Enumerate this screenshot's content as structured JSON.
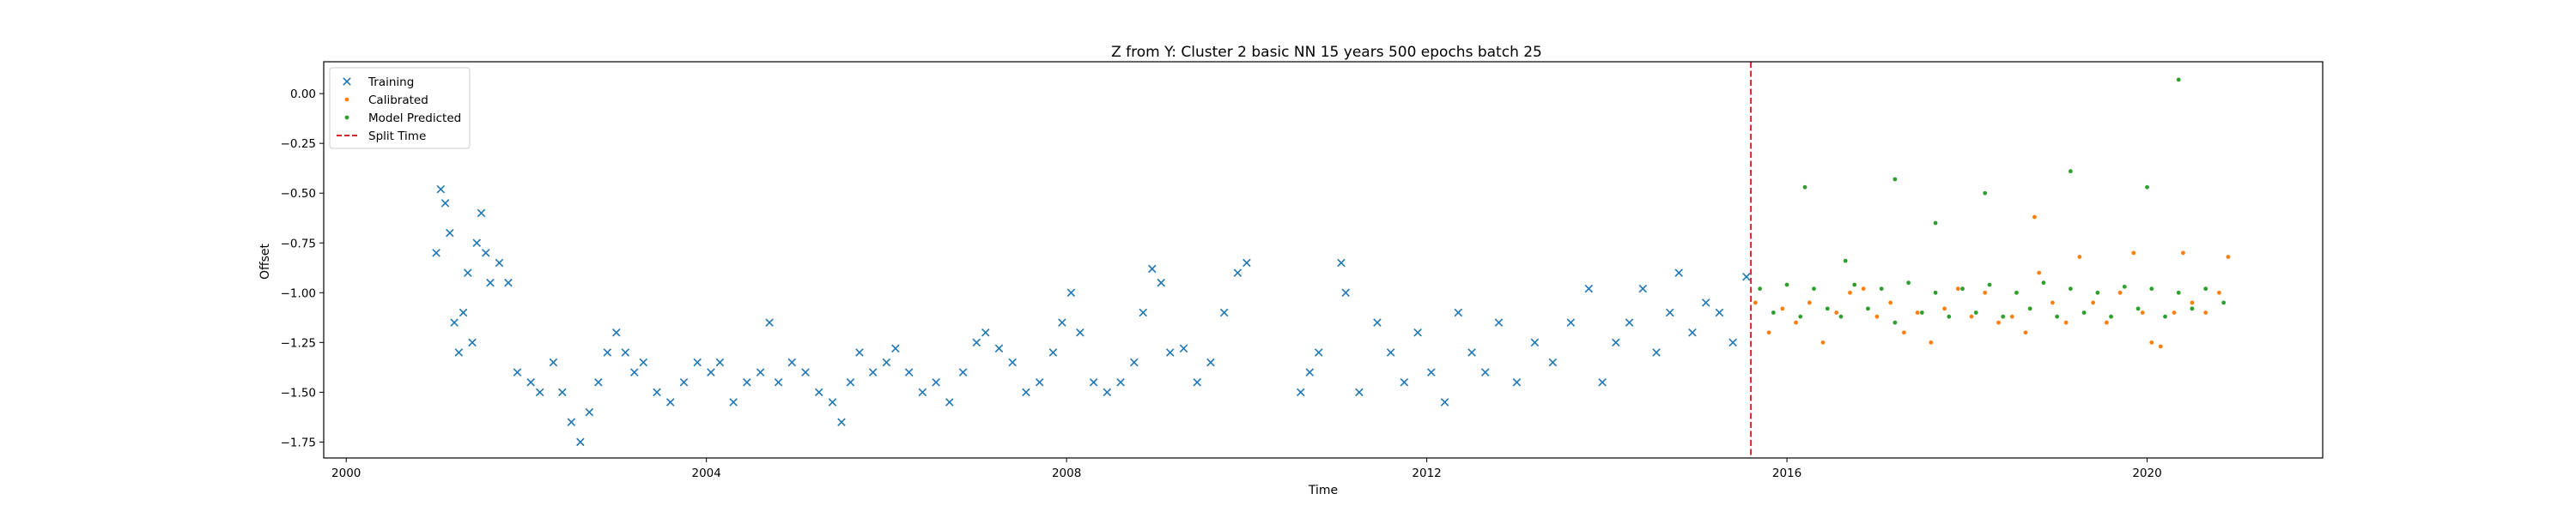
{
  "chart_data": {
    "type": "scatter",
    "title": "Z from Y: Cluster 2 basic NN 15 years 500 epochs batch 25",
    "xlabel": "Time",
    "ylabel": "Offset",
    "xlim": [
      1999.75,
      2021.95
    ],
    "ylim": [
      -1.83,
      0.16
    ],
    "xticks": [
      {
        "value": 2000,
        "label": "2000"
      },
      {
        "value": 2004,
        "label": "2004"
      },
      {
        "value": 2008,
        "label": "2008"
      },
      {
        "value": 2012,
        "label": "2012"
      },
      {
        "value": 2016,
        "label": "2016"
      },
      {
        "value": 2020,
        "label": "2020"
      }
    ],
    "yticks": [
      {
        "value": 0.0,
        "label": "0.00"
      },
      {
        "value": -0.25,
        "label": "−0.25"
      },
      {
        "value": -0.5,
        "label": "−0.50"
      },
      {
        "value": -0.75,
        "label": "−0.75"
      },
      {
        "value": -1.0,
        "label": "−1.00"
      },
      {
        "value": -1.25,
        "label": "−1.25"
      },
      {
        "value": -1.5,
        "label": "−1.50"
      },
      {
        "value": -1.75,
        "label": "−1.75"
      }
    ],
    "grid": false,
    "legend_position": "top-left",
    "split_time": 2015.6,
    "series": [
      {
        "name": "Training",
        "marker": "x",
        "color": "#1f77b4",
        "points": [
          [
            2001.0,
            -0.8
          ],
          [
            2001.05,
            -0.48
          ],
          [
            2001.1,
            -0.55
          ],
          [
            2001.15,
            -0.7
          ],
          [
            2001.2,
            -1.15
          ],
          [
            2001.25,
            -1.3
          ],
          [
            2001.3,
            -1.1
          ],
          [
            2001.35,
            -0.9
          ],
          [
            2001.4,
            -1.25
          ],
          [
            2001.45,
            -0.75
          ],
          [
            2001.5,
            -0.6
          ],
          [
            2001.55,
            -0.8
          ],
          [
            2001.6,
            -0.95
          ],
          [
            2001.7,
            -0.85
          ],
          [
            2001.8,
            -0.95
          ],
          [
            2001.9,
            -1.4
          ],
          [
            2002.05,
            -1.45
          ],
          [
            2002.15,
            -1.5
          ],
          [
            2002.3,
            -1.35
          ],
          [
            2002.4,
            -1.5
          ],
          [
            2002.5,
            -1.65
          ],
          [
            2002.6,
            -1.75
          ],
          [
            2002.7,
            -1.6
          ],
          [
            2002.8,
            -1.45
          ],
          [
            2002.9,
            -1.3
          ],
          [
            2003.0,
            -1.2
          ],
          [
            2003.1,
            -1.3
          ],
          [
            2003.2,
            -1.4
          ],
          [
            2003.3,
            -1.35
          ],
          [
            2003.45,
            -1.5
          ],
          [
            2003.6,
            -1.55
          ],
          [
            2003.75,
            -1.45
          ],
          [
            2003.9,
            -1.35
          ],
          [
            2004.05,
            -1.4
          ],
          [
            2004.15,
            -1.35
          ],
          [
            2004.3,
            -1.55
          ],
          [
            2004.45,
            -1.45
          ],
          [
            2004.6,
            -1.4
          ],
          [
            2004.7,
            -1.15
          ],
          [
            2004.8,
            -1.45
          ],
          [
            2004.95,
            -1.35
          ],
          [
            2005.1,
            -1.4
          ],
          [
            2005.25,
            -1.5
          ],
          [
            2005.4,
            -1.55
          ],
          [
            2005.5,
            -1.65
          ],
          [
            2005.6,
            -1.45
          ],
          [
            2005.7,
            -1.3
          ],
          [
            2005.85,
            -1.4
          ],
          [
            2006.0,
            -1.35
          ],
          [
            2006.1,
            -1.28
          ],
          [
            2006.25,
            -1.4
          ],
          [
            2006.4,
            -1.5
          ],
          [
            2006.55,
            -1.45
          ],
          [
            2006.7,
            -1.55
          ],
          [
            2006.85,
            -1.4
          ],
          [
            2007.0,
            -1.25
          ],
          [
            2007.1,
            -1.2
          ],
          [
            2007.25,
            -1.28
          ],
          [
            2007.4,
            -1.35
          ],
          [
            2007.55,
            -1.5
          ],
          [
            2007.7,
            -1.45
          ],
          [
            2007.85,
            -1.3
          ],
          [
            2007.95,
            -1.15
          ],
          [
            2008.05,
            -1.0
          ],
          [
            2008.15,
            -1.2
          ],
          [
            2008.3,
            -1.45
          ],
          [
            2008.45,
            -1.5
          ],
          [
            2008.6,
            -1.45
          ],
          [
            2008.75,
            -1.35
          ],
          [
            2008.85,
            -1.1
          ],
          [
            2008.95,
            -0.88
          ],
          [
            2009.05,
            -0.95
          ],
          [
            2009.15,
            -1.3
          ],
          [
            2009.3,
            -1.28
          ],
          [
            2009.45,
            -1.45
          ],
          [
            2009.6,
            -1.35
          ],
          [
            2009.75,
            -1.1
          ],
          [
            2009.9,
            -0.9
          ],
          [
            2010.0,
            -0.85
          ],
          [
            2010.6,
            -1.5
          ],
          [
            2010.7,
            -1.4
          ],
          [
            2010.8,
            -1.3
          ],
          [
            2011.05,
            -0.85
          ],
          [
            2011.1,
            -1.0
          ],
          [
            2011.25,
            -1.5
          ],
          [
            2011.45,
            -1.15
          ],
          [
            2011.6,
            -1.3
          ],
          [
            2011.75,
            -1.45
          ],
          [
            2011.9,
            -1.2
          ],
          [
            2012.05,
            -1.4
          ],
          [
            2012.2,
            -1.55
          ],
          [
            2012.35,
            -1.1
          ],
          [
            2012.5,
            -1.3
          ],
          [
            2012.65,
            -1.4
          ],
          [
            2012.8,
            -1.15
          ],
          [
            2013.0,
            -1.45
          ],
          [
            2013.2,
            -1.25
          ],
          [
            2013.4,
            -1.35
          ],
          [
            2013.6,
            -1.15
          ],
          [
            2013.8,
            -0.98
          ],
          [
            2013.95,
            -1.45
          ],
          [
            2014.1,
            -1.25
          ],
          [
            2014.25,
            -1.15
          ],
          [
            2014.4,
            -0.98
          ],
          [
            2014.55,
            -1.3
          ],
          [
            2014.7,
            -1.1
          ],
          [
            2014.8,
            -0.9
          ],
          [
            2014.95,
            -1.2
          ],
          [
            2015.1,
            -1.05
          ],
          [
            2015.25,
            -1.1
          ],
          [
            2015.4,
            -1.25
          ],
          [
            2015.55,
            -0.92
          ]
        ]
      },
      {
        "name": "Calibrated",
        "marker": "dot",
        "color": "#ff7f0e",
        "points": [
          [
            2015.65,
            -1.05
          ],
          [
            2015.8,
            -1.2
          ],
          [
            2015.95,
            -1.08
          ],
          [
            2016.1,
            -1.15
          ],
          [
            2016.25,
            -1.05
          ],
          [
            2016.4,
            -1.25
          ],
          [
            2016.55,
            -1.1
          ],
          [
            2016.7,
            -1.0
          ],
          [
            2016.85,
            -0.98
          ],
          [
            2017.0,
            -1.12
          ],
          [
            2017.15,
            -1.05
          ],
          [
            2017.3,
            -1.2
          ],
          [
            2017.45,
            -1.1
          ],
          [
            2017.6,
            -1.25
          ],
          [
            2017.75,
            -1.08
          ],
          [
            2017.9,
            -0.98
          ],
          [
            2018.05,
            -1.12
          ],
          [
            2018.2,
            -1.0
          ],
          [
            2018.35,
            -1.15
          ],
          [
            2018.5,
            -1.12
          ],
          [
            2018.65,
            -1.2
          ],
          [
            2018.8,
            -0.9
          ],
          [
            2018.95,
            -1.05
          ],
          [
            2019.1,
            -1.15
          ],
          [
            2019.25,
            -0.82
          ],
          [
            2019.4,
            -1.05
          ],
          [
            2019.55,
            -1.15
          ],
          [
            2019.7,
            -1.0
          ],
          [
            2019.85,
            -0.8
          ],
          [
            2019.95,
            -1.1
          ],
          [
            2020.05,
            -1.25
          ],
          [
            2020.15,
            -1.27
          ],
          [
            2020.3,
            -1.1
          ],
          [
            2020.4,
            -0.8
          ],
          [
            2020.5,
            -1.05
          ],
          [
            2020.65,
            -1.1
          ],
          [
            2020.8,
            -1.0
          ],
          [
            2020.9,
            -0.82
          ],
          [
            2018.75,
            -0.62
          ]
        ]
      },
      {
        "name": "Model Predicted",
        "marker": "dot",
        "color": "#2ca02c",
        "points": [
          [
            2015.7,
            -0.98
          ],
          [
            2015.85,
            -1.1
          ],
          [
            2016.0,
            -0.96
          ],
          [
            2016.15,
            -1.12
          ],
          [
            2016.3,
            -0.98
          ],
          [
            2016.45,
            -1.08
          ],
          [
            2016.6,
            -1.12
          ],
          [
            2016.75,
            -0.96
          ],
          [
            2016.9,
            -1.08
          ],
          [
            2017.05,
            -0.98
          ],
          [
            2017.2,
            -1.15
          ],
          [
            2017.35,
            -0.95
          ],
          [
            2017.5,
            -1.1
          ],
          [
            2017.65,
            -1.0
          ],
          [
            2017.8,
            -1.12
          ],
          [
            2017.95,
            -0.98
          ],
          [
            2018.1,
            -1.1
          ],
          [
            2018.25,
            -0.96
          ],
          [
            2018.4,
            -1.12
          ],
          [
            2018.55,
            -1.0
          ],
          [
            2018.7,
            -1.08
          ],
          [
            2018.85,
            -0.95
          ],
          [
            2019.0,
            -1.12
          ],
          [
            2019.15,
            -0.98
          ],
          [
            2019.3,
            -1.1
          ],
          [
            2019.45,
            -1.0
          ],
          [
            2019.6,
            -1.12
          ],
          [
            2019.75,
            -0.97
          ],
          [
            2019.9,
            -1.08
          ],
          [
            2020.05,
            -0.98
          ],
          [
            2020.2,
            -1.12
          ],
          [
            2020.35,
            -1.0
          ],
          [
            2020.5,
            -1.08
          ],
          [
            2020.65,
            -0.98
          ],
          [
            2020.85,
            -1.05
          ],
          [
            2016.2,
            -0.47
          ],
          [
            2016.65,
            -0.84
          ],
          [
            2017.2,
            -0.43
          ],
          [
            2017.65,
            -0.65
          ],
          [
            2018.2,
            -0.5
          ],
          [
            2019.15,
            -0.39
          ],
          [
            2020.0,
            -0.47
          ],
          [
            2020.35,
            0.07
          ]
        ]
      }
    ],
    "legend": [
      {
        "label": "Training",
        "marker": "x",
        "color": "#1f77b4"
      },
      {
        "label": "Calibrated",
        "marker": "dot",
        "color": "#ff7f0e"
      },
      {
        "label": "Model Predicted",
        "marker": "dot",
        "color": "#2ca02c"
      },
      {
        "label": "Split Time",
        "marker": "dashed-line",
        "color": "#d62728"
      }
    ]
  }
}
